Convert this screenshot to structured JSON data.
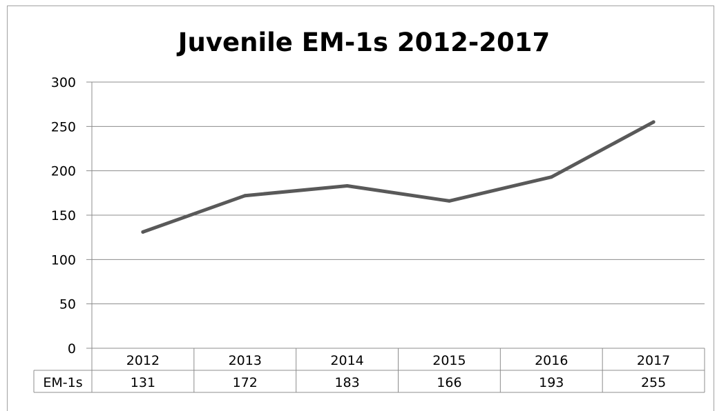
{
  "chart_data": {
    "type": "line",
    "title": "Juvenile EM-1s 2012-2017",
    "categories": [
      "2012",
      "2013",
      "2014",
      "2015",
      "2016",
      "2017"
    ],
    "series": [
      {
        "name": "EM-1s",
        "values": [
          131,
          172,
          183,
          166,
          193,
          255
        ],
        "color": "#595959"
      }
    ],
    "ylim": [
      0,
      300
    ],
    "yticks": [
      0,
      50,
      100,
      150,
      200,
      250,
      300
    ],
    "grid": true,
    "legend": "data-table",
    "data_table": true
  }
}
